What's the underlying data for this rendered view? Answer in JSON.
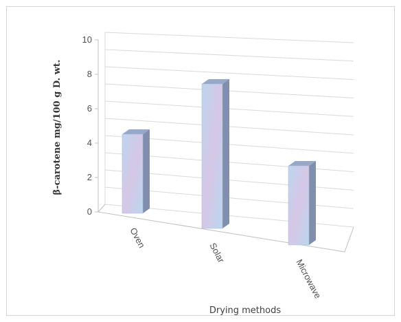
{
  "chart_data": {
    "type": "bar",
    "categories": [
      "Oven",
      "Solar",
      "Microwave"
    ],
    "values": [
      4.6,
      8.4,
      4.6
    ],
    "title": "",
    "xlabel": "Drying methods",
    "ylabel": "β-carotene mg/100 g D. wt.",
    "ylim": [
      0,
      10
    ],
    "yticks": [
      "0",
      "2",
      "4",
      "6",
      "8",
      "10"
    ],
    "grid": true,
    "legend": "none",
    "style": "3d-column",
    "colors": {
      "bar_front": "#bcd6ee",
      "bar_front_alt": "#d5c7e6",
      "bar_side": "#7f8fad",
      "bar_top": "#97a8c8",
      "gridline": "#d9d9d9",
      "text": "#505050"
    }
  }
}
